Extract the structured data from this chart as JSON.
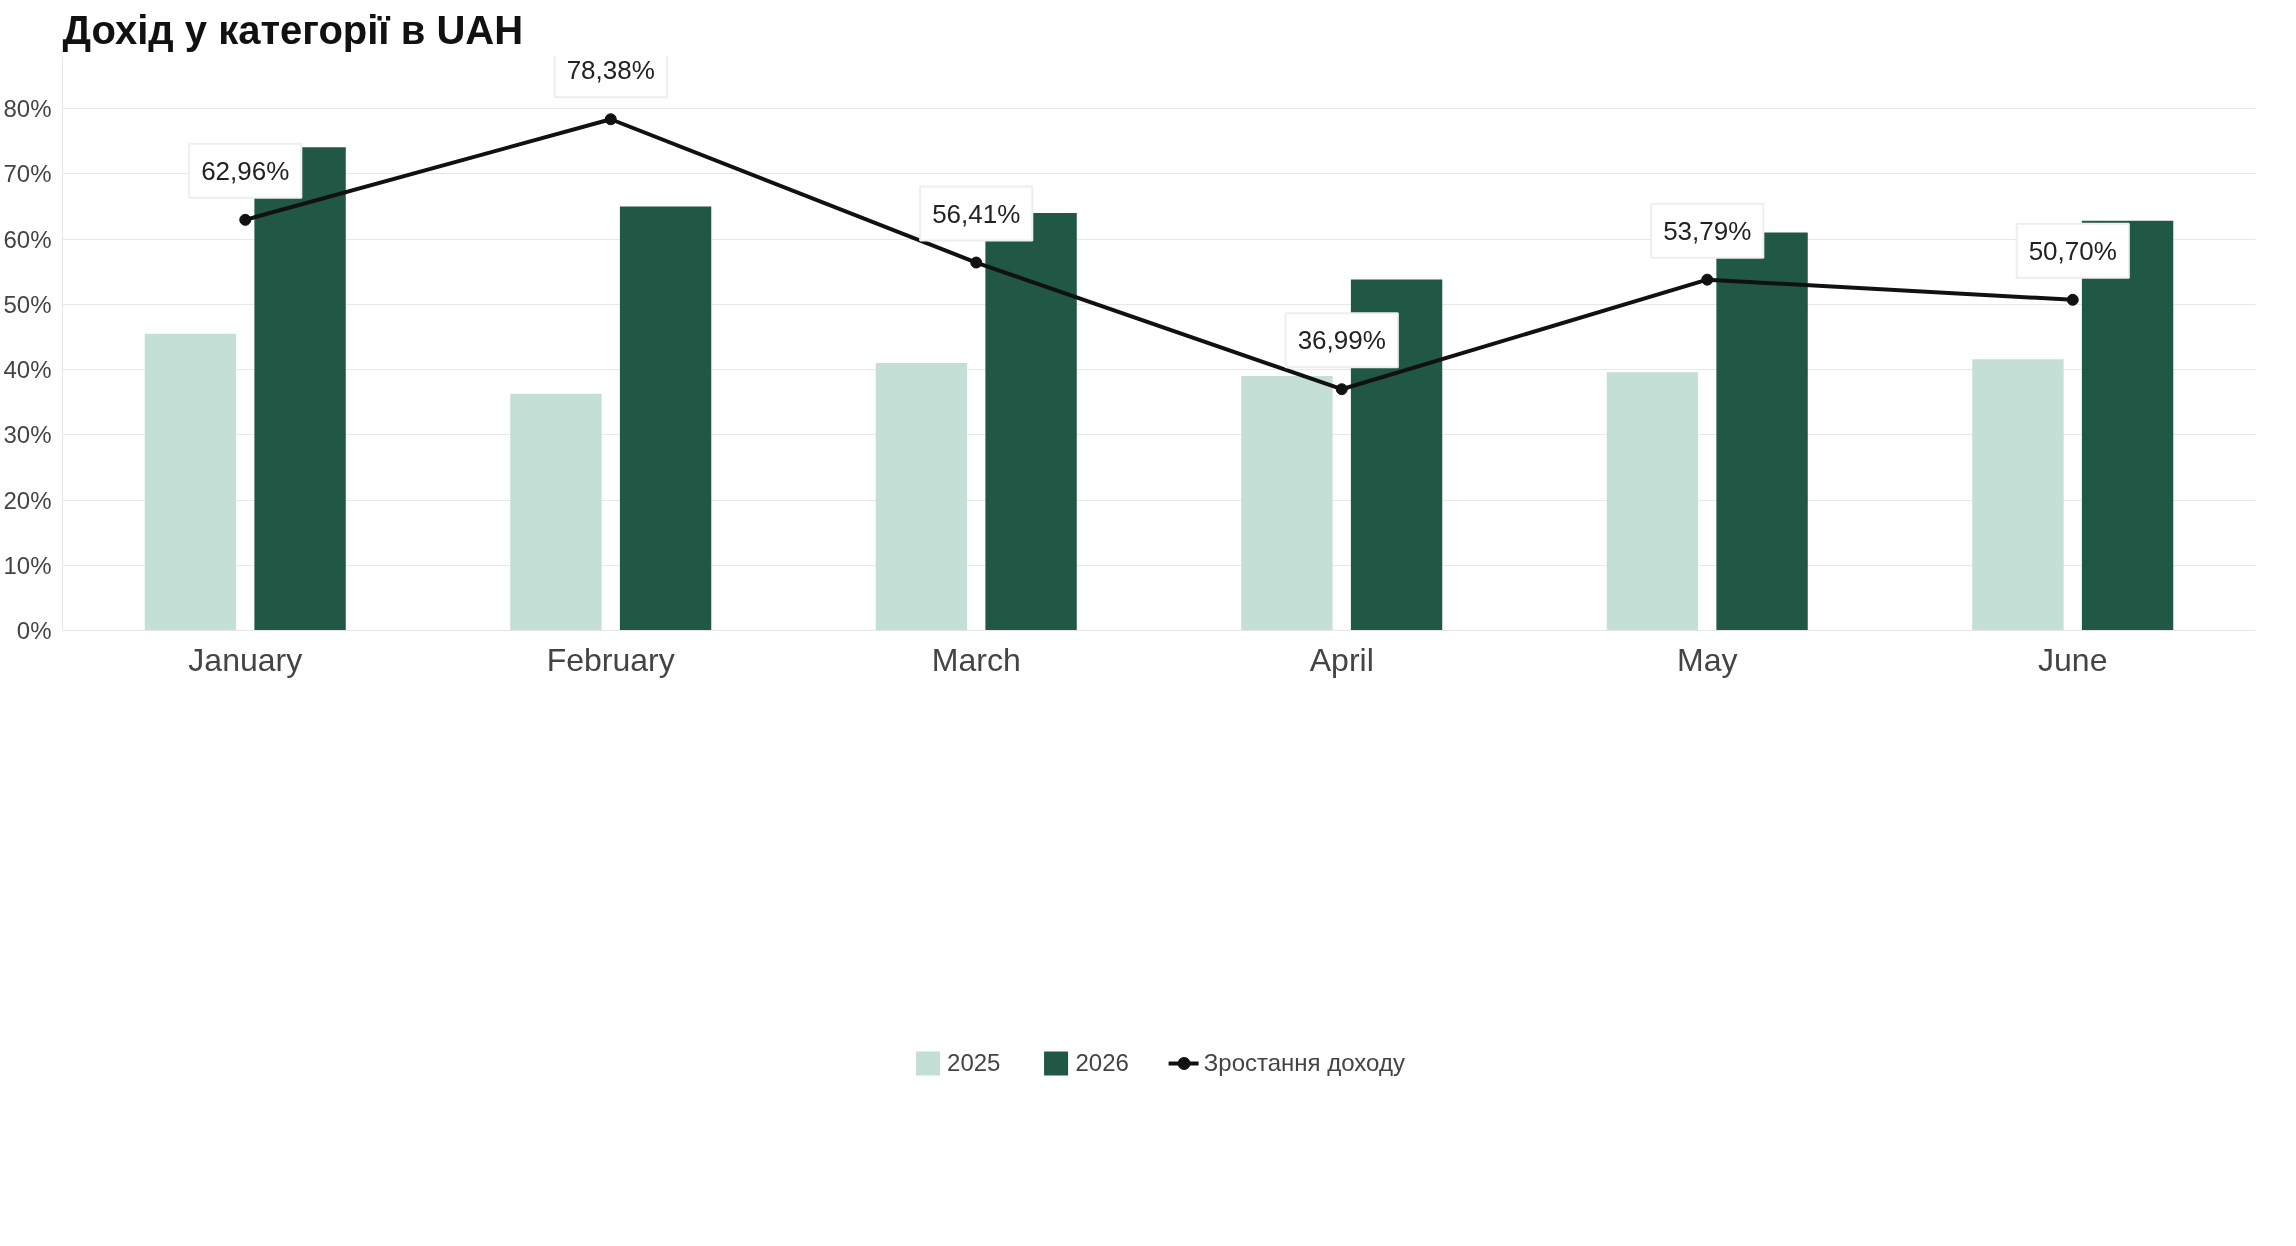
{
  "chart_data": {
    "type": "bar",
    "title": "Дохід у категорії в UAH",
    "categories": [
      "January",
      "February",
      "March",
      "April",
      "May",
      "June"
    ],
    "series": [
      {
        "name": "2025",
        "color": "#c4dfd6",
        "values": [
          45.5,
          36.3,
          41.0,
          39.0,
          39.6,
          41.6
        ]
      },
      {
        "name": "2026",
        "color": "#205745",
        "values": [
          74.1,
          65.0,
          64.0,
          53.8,
          61.0,
          62.8
        ]
      },
      {
        "name": "Зростання доходу",
        "type": "line",
        "color": "#111111",
        "marker": "circle",
        "values": [
          62.96,
          78.38,
          56.41,
          36.99,
          53.79,
          50.7
        ],
        "value_labels": [
          "62,96%",
          "78,38%",
          "56,41%",
          "36,99%",
          "53,79%",
          "50,70%"
        ]
      }
    ],
    "ylim": [
      0,
      88
    ],
    "yticks": [
      {
        "value": 0,
        "label": "0%"
      },
      {
        "value": 10,
        "label": "10%"
      },
      {
        "value": 20,
        "label": "20%"
      },
      {
        "value": 30,
        "label": "30%"
      },
      {
        "value": 40,
        "label": "40%"
      },
      {
        "value": 50,
        "label": "50%"
      },
      {
        "value": 60,
        "label": "60%"
      },
      {
        "value": 70,
        "label": "70%"
      },
      {
        "value": 80,
        "label": "80%"
      }
    ],
    "grid": "y",
    "legend": "bottom"
  }
}
